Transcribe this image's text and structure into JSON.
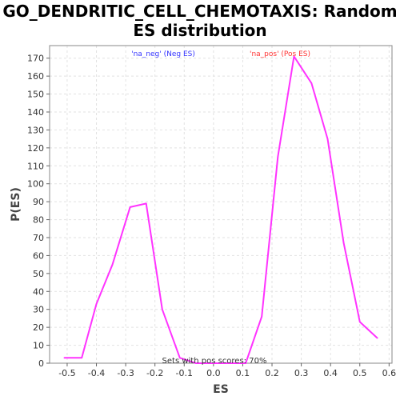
{
  "chart_data": {
    "type": "line",
    "title_line1": "GO_DENDRITIC_CELL_CHEMOTAXIS: Random",
    "title_line2": "ES distribution",
    "xlabel": "ES",
    "ylabel": "P(ES)",
    "xlim": [
      -0.56,
      0.61
    ],
    "ylim": [
      0,
      177
    ],
    "x_ticks": [
      -0.5,
      -0.4,
      -0.3,
      -0.2,
      -0.1,
      0.0,
      0.1,
      0.2,
      0.3,
      0.4,
      0.5,
      0.6
    ],
    "x_tick_labels": [
      "-0.5",
      "-0.4",
      "-0.3",
      "-0.2",
      "-0.1",
      "0.0",
      "0.1",
      "0.2",
      "0.3",
      "0.4",
      "0.5",
      "0.6"
    ],
    "y_ticks": [
      0,
      10,
      20,
      30,
      40,
      50,
      60,
      70,
      80,
      90,
      100,
      110,
      120,
      130,
      140,
      150,
      160,
      170
    ],
    "y_tick_labels": [
      "0",
      "10",
      "20",
      "30",
      "40",
      "50",
      "60",
      "70",
      "80",
      "90",
      "100",
      "110",
      "120",
      "130",
      "140",
      "150",
      "160",
      "170"
    ],
    "grid": true,
    "series": [
      {
        "color": "#ff33ff",
        "x": [
          -0.51,
          -0.45,
          -0.4,
          -0.345,
          -0.285,
          -0.23,
          -0.175,
          -0.115,
          -0.06,
          0.0,
          0.06,
          0.11,
          0.165,
          0.22,
          0.275,
          0.335,
          0.39,
          0.445,
          0.5,
          0.56
        ],
        "y": [
          3,
          3,
          33,
          55,
          87,
          89,
          30,
          3,
          0,
          0,
          0,
          0,
          26,
          115,
          171,
          156,
          125,
          67,
          23,
          14
        ]
      }
    ],
    "annotations": {
      "neg": {
        "text": "'na_neg' (Neg ES)",
        "color": "#3333ff"
      },
      "pos": {
        "text": "'na_pos' (Pos ES)",
        "color": "#ff3333"
      },
      "footer": {
        "text": "Sets with pos scores: 70%",
        "color": "#333333"
      }
    }
  }
}
